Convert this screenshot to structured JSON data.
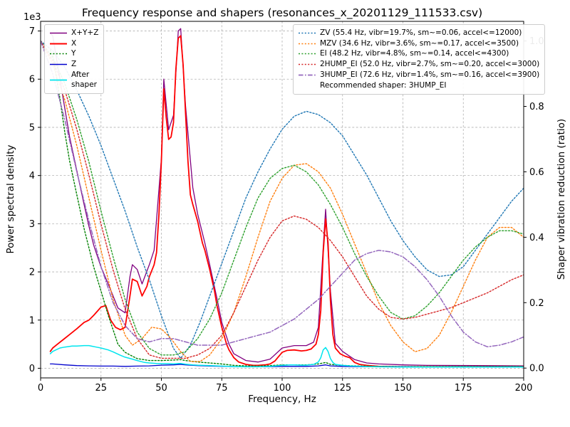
{
  "chart_data": {
    "type": "line",
    "title": "Frequency response and shapers (resonances_x_20201129_111533.csv)",
    "xlabel": "Frequency, Hz",
    "ylabel_left": "Power spectral density",
    "ylabel_right": "Shaper vibration reduction (ratio)",
    "offset_text": "1e3",
    "recommended": "Recommended shaper: 3HUMP_EI",
    "grid": true,
    "legend_position_left": "upper left",
    "legend_position_right": "upper right",
    "xlim": [
      0,
      200
    ],
    "xticks": [
      0,
      25,
      50,
      75,
      100,
      125,
      150,
      175,
      200
    ],
    "ylim_left": [
      -200,
      7200
    ],
    "yticks_left_labels": [
      "0",
      "1",
      "2",
      "3",
      "4",
      "5",
      "6",
      "7"
    ],
    "yticks_left_values": [
      0,
      1000,
      2000,
      3000,
      4000,
      5000,
      6000,
      7000
    ],
    "ylim_right": [
      -0.03,
      1.06
    ],
    "yticks_right_labels": [
      "0.0",
      "0.2",
      "0.4",
      "0.6",
      "0.8",
      "1.0"
    ],
    "yticks_right_values": [
      0.0,
      0.2,
      0.4,
      0.6,
      0.8,
      1.0
    ],
    "colors": {
      "grid": "#b0b0b0",
      "axis": "#000000"
    },
    "series": [
      {
        "name": "xyz",
        "label": "X+Y+Z",
        "color": "#800080",
        "dash": "solid",
        "width": 1.3,
        "axis": "left",
        "legend": "left",
        "x": [
          4,
          5,
          7,
          10,
          12,
          15,
          18,
          20,
          22,
          25,
          28,
          30,
          32,
          35,
          37,
          38,
          40,
          42,
          45,
          47,
          50,
          51,
          53,
          55,
          57,
          58,
          60,
          63,
          65,
          68,
          70,
          73,
          75,
          78,
          80,
          85,
          90,
          95,
          100,
          105,
          110,
          113,
          115,
          117,
          118,
          120,
          122,
          125,
          130,
          135,
          140,
          150,
          160,
          180,
          200
        ],
        "y": [
          6950,
          6900,
          6300,
          5400,
          4800,
          4100,
          3400,
          2950,
          2550,
          2100,
          1750,
          1500,
          1250,
          1150,
          1900,
          2150,
          2050,
          1750,
          2150,
          2450,
          4350,
          6000,
          4950,
          5250,
          7000,
          7050,
          5450,
          3750,
          3200,
          2600,
          2150,
          1450,
          950,
          500,
          300,
          160,
          130,
          190,
          420,
          470,
          470,
          540,
          850,
          2500,
          3300,
          1600,
          520,
          350,
          180,
          110,
          90,
          70,
          60,
          55,
          50
        ]
      },
      {
        "name": "x",
        "label": "X",
        "color": "#ff0000",
        "dash": "solid",
        "width": 1.8,
        "axis": "left",
        "legend": "left",
        "x": [
          4,
          5,
          7,
          10,
          12,
          15,
          18,
          20,
          22,
          25,
          27,
          29,
          31,
          33,
          35,
          37,
          38,
          40,
          42,
          44,
          45,
          47,
          48,
          49,
          50,
          51,
          52,
          53,
          54,
          55,
          56,
          57,
          58,
          59,
          60,
          61,
          62,
          63,
          65,
          67,
          68,
          70,
          72,
          73,
          75,
          77,
          78,
          80,
          82,
          85,
          88,
          90,
          93,
          95,
          97,
          100,
          102,
          105,
          108,
          110,
          112,
          114,
          115,
          116,
          117,
          118,
          119,
          120,
          121,
          122,
          124,
          126,
          128,
          130,
          132,
          135,
          140,
          145,
          150,
          160,
          170,
          180,
          190,
          200
        ],
        "y": [
          350,
          420,
          500,
          620,
          700,
          820,
          950,
          1000,
          1100,
          1270,
          1300,
          1000,
          850,
          800,
          850,
          1500,
          1850,
          1800,
          1500,
          1700,
          1900,
          2150,
          2400,
          3200,
          4300,
          5800,
          5200,
          4750,
          4800,
          5100,
          6200,
          6850,
          6900,
          6300,
          5300,
          4300,
          3600,
          3400,
          3050,
          2600,
          2450,
          2050,
          1600,
          1300,
          850,
          500,
          380,
          220,
          130,
          80,
          60,
          60,
          70,
          90,
          150,
          330,
          370,
          380,
          360,
          370,
          400,
          500,
          700,
          1200,
          2400,
          3100,
          2600,
          1400,
          700,
          420,
          300,
          250,
          220,
          120,
          80,
          60,
          40,
          35,
          30,
          30,
          30,
          30,
          30,
          30
        ]
      },
      {
        "name": "y",
        "label": "Y",
        "color": "#008000",
        "dash": "dotted",
        "width": 1.4,
        "axis": "left",
        "legend": "left",
        "x": [
          4,
          5,
          8,
          10,
          12,
          15,
          18,
          20,
          22,
          25,
          28,
          30,
          32,
          35,
          38,
          40,
          45,
          50,
          55,
          58,
          60,
          65,
          70,
          75,
          80,
          85,
          90,
          95,
          100,
          105,
          110,
          115,
          118,
          120,
          125,
          130,
          140,
          150,
          160,
          180,
          200
        ],
        "y": [
          6600,
          6500,
          5600,
          4900,
          4300,
          3600,
          2900,
          2500,
          2100,
          1600,
          1100,
          800,
          500,
          330,
          250,
          200,
          160,
          160,
          170,
          180,
          160,
          130,
          110,
          90,
          60,
          50,
          45,
          55,
          70,
          70,
          70,
          90,
          120,
          80,
          60,
          50,
          40,
          35,
          35,
          35,
          35
        ]
      },
      {
        "name": "z",
        "label": "Z",
        "color": "#0000cd",
        "dash": "solid",
        "width": 1.3,
        "axis": "left",
        "legend": "left",
        "x": [
          4,
          5,
          10,
          15,
          20,
          25,
          30,
          35,
          40,
          45,
          50,
          55,
          58,
          60,
          65,
          70,
          80,
          90,
          100,
          110,
          115,
          118,
          120,
          125,
          130,
          140,
          150,
          160,
          180,
          200
        ],
        "y": [
          90,
          90,
          70,
          55,
          50,
          45,
          45,
          40,
          45,
          50,
          65,
          70,
          80,
          70,
          55,
          45,
          35,
          30,
          40,
          40,
          50,
          70,
          50,
          40,
          35,
          30,
          30,
          25,
          25,
          25
        ]
      },
      {
        "name": "after-shaper",
        "label": "After\nshaper",
        "color": "#00e5ee",
        "dash": "solid",
        "width": 1.5,
        "axis": "left",
        "legend": "left",
        "x": [
          4,
          5,
          8,
          10,
          13,
          15,
          18,
          20,
          23,
          25,
          28,
          30,
          33,
          35,
          38,
          40,
          43,
          45,
          48,
          50,
          53,
          55,
          57,
          58,
          60,
          63,
          65,
          70,
          75,
          80,
          85,
          90,
          95,
          100,
          103,
          105,
          108,
          110,
          113,
          115,
          116,
          117,
          118,
          119,
          120,
          121,
          122,
          125,
          128,
          130,
          135,
          140,
          150,
          160,
          180,
          200
        ],
        "y": [
          300,
          350,
          420,
          440,
          460,
          460,
          470,
          470,
          440,
          420,
          380,
          340,
          270,
          230,
          190,
          160,
          120,
          110,
          100,
          95,
          95,
          90,
          100,
          100,
          85,
          70,
          65,
          55,
          45,
          35,
          30,
          30,
          40,
          60,
          70,
          70,
          65,
          65,
          80,
          130,
          220,
          380,
          430,
          350,
          200,
          120,
          80,
          60,
          50,
          45,
          35,
          30,
          25,
          25,
          25,
          25
        ]
      },
      {
        "name": "shaper-zv",
        "label": "ZV (55.4 Hz, vibr=19.7%, sm~=0.06, accel<=12000)",
        "color": "#1f77b4",
        "dash": "dotted",
        "width": 1.4,
        "axis": "right",
        "legend": "right",
        "x": [
          0,
          5,
          10,
          15,
          20,
          25,
          30,
          35,
          40,
          45,
          50,
          55,
          58,
          62,
          66,
          70,
          75,
          80,
          85,
          90,
          95,
          100,
          105,
          110,
          115,
          120,
          125,
          130,
          135,
          140,
          145,
          150,
          155,
          160,
          165,
          170,
          175,
          180,
          185,
          190,
          195,
          200
        ],
        "y": [
          1.0,
          0.97,
          0.92,
          0.85,
          0.77,
          0.68,
          0.58,
          0.48,
          0.37,
          0.27,
          0.16,
          0.06,
          0.03,
          0.07,
          0.14,
          0.22,
          0.32,
          0.42,
          0.52,
          0.6,
          0.67,
          0.73,
          0.77,
          0.785,
          0.775,
          0.75,
          0.71,
          0.65,
          0.59,
          0.52,
          0.45,
          0.39,
          0.34,
          0.3,
          0.28,
          0.285,
          0.31,
          0.36,
          0.41,
          0.46,
          0.51,
          0.55
        ]
      },
      {
        "name": "shaper-mzv",
        "label": "MZV (34.6 Hz, vibr=3.6%, sm~=0.17, accel<=3500)",
        "color": "#ff7f0e",
        "dash": "dotted",
        "width": 1.4,
        "axis": "right",
        "legend": "right",
        "x": [
          0,
          5,
          10,
          15,
          20,
          25,
          30,
          35,
          38,
          42,
          46,
          50,
          54,
          58,
          62,
          66,
          70,
          75,
          80,
          85,
          90,
          95,
          100,
          105,
          110,
          115,
          120,
          125,
          130,
          135,
          140,
          145,
          150,
          155,
          160,
          165,
          170,
          175,
          180,
          185,
          190,
          195,
          200
        ],
        "y": [
          1.0,
          0.93,
          0.82,
          0.68,
          0.52,
          0.36,
          0.21,
          0.1,
          0.07,
          0.09,
          0.125,
          0.12,
          0.09,
          0.05,
          0.02,
          0.02,
          0.04,
          0.09,
          0.17,
          0.28,
          0.4,
          0.51,
          0.58,
          0.62,
          0.625,
          0.6,
          0.55,
          0.47,
          0.38,
          0.29,
          0.2,
          0.13,
          0.08,
          0.05,
          0.06,
          0.1,
          0.17,
          0.25,
          0.33,
          0.4,
          0.43,
          0.43,
          0.4
        ]
      },
      {
        "name": "shaper-ei",
        "label": "EI (48.2 Hz, vibr=4.8%, sm~=0.14, accel<=4300)",
        "color": "#2ca02c",
        "dash": "dotted",
        "width": 1.4,
        "axis": "right",
        "legend": "right",
        "x": [
          0,
          5,
          10,
          15,
          20,
          25,
          30,
          35,
          40,
          45,
          50,
          55,
          60,
          65,
          70,
          75,
          80,
          85,
          90,
          95,
          100,
          105,
          110,
          115,
          120,
          125,
          130,
          135,
          140,
          145,
          150,
          155,
          160,
          165,
          170,
          175,
          180,
          185,
          190,
          195,
          200
        ],
        "y": [
          1.0,
          0.95,
          0.87,
          0.76,
          0.63,
          0.48,
          0.34,
          0.21,
          0.11,
          0.06,
          0.04,
          0.04,
          0.05,
          0.09,
          0.15,
          0.23,
          0.33,
          0.43,
          0.52,
          0.58,
          0.61,
          0.62,
          0.6,
          0.56,
          0.5,
          0.43,
          0.35,
          0.28,
          0.22,
          0.17,
          0.15,
          0.16,
          0.19,
          0.23,
          0.28,
          0.33,
          0.37,
          0.4,
          0.42,
          0.42,
          0.41
        ]
      },
      {
        "name": "shaper-2hump-ei",
        "label": "2HUMP_EI (52.0 Hz, vibr=2.7%, sm~=0.20, accel<=3000)",
        "color": "#d62728",
        "dash": "dotted",
        "width": 1.4,
        "axis": "right",
        "legend": "right",
        "x": [
          0,
          5,
          10,
          15,
          20,
          25,
          30,
          35,
          40,
          45,
          50,
          55,
          60,
          65,
          70,
          75,
          80,
          85,
          90,
          95,
          100,
          105,
          110,
          115,
          120,
          125,
          130,
          135,
          140,
          145,
          150,
          155,
          160,
          165,
          170,
          175,
          180,
          185,
          190,
          195,
          200
        ],
        "y": [
          1.0,
          0.94,
          0.85,
          0.73,
          0.59,
          0.44,
          0.3,
          0.18,
          0.09,
          0.04,
          0.03,
          0.03,
          0.03,
          0.04,
          0.06,
          0.1,
          0.17,
          0.25,
          0.33,
          0.4,
          0.45,
          0.465,
          0.455,
          0.43,
          0.39,
          0.34,
          0.28,
          0.22,
          0.18,
          0.155,
          0.15,
          0.155,
          0.165,
          0.175,
          0.185,
          0.2,
          0.215,
          0.23,
          0.25,
          0.27,
          0.285
        ]
      },
      {
        "name": "shaper-3hump-ei",
        "label": "3HUMP_EI (72.6 Hz, vibr=1.4%, sm~=0.16, accel<=3900)",
        "color": "#9467bd",
        "dash": "dashdot",
        "width": 1.5,
        "axis": "right",
        "legend": "right",
        "x": [
          0,
          5,
          10,
          15,
          20,
          25,
          30,
          35,
          40,
          45,
          50,
          55,
          60,
          65,
          70,
          75,
          80,
          85,
          90,
          95,
          100,
          105,
          110,
          115,
          120,
          125,
          130,
          135,
          140,
          145,
          150,
          155,
          160,
          165,
          170,
          175,
          180,
          185,
          190,
          195,
          200
        ],
        "y": [
          1.0,
          0.9,
          0.76,
          0.6,
          0.45,
          0.31,
          0.2,
          0.13,
          0.09,
          0.08,
          0.09,
          0.09,
          0.08,
          0.07,
          0.07,
          0.07,
          0.08,
          0.09,
          0.1,
          0.11,
          0.13,
          0.15,
          0.18,
          0.21,
          0.25,
          0.29,
          0.33,
          0.35,
          0.36,
          0.355,
          0.34,
          0.31,
          0.27,
          0.22,
          0.16,
          0.11,
          0.08,
          0.065,
          0.07,
          0.08,
          0.095
        ]
      }
    ]
  }
}
